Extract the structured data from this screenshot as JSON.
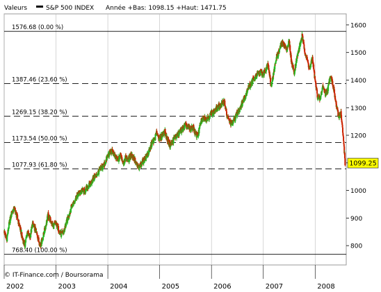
{
  "header": {
    "label": "Valeurs",
    "series_name": "S&P 500 INDEX",
    "stats": "Année +Bas: 1098.15 +Haut: 1471.75"
  },
  "footer": {
    "credit": "© IT-Finance.com / Boursorama"
  },
  "price_label": "1099.25",
  "colors": {
    "up": "#22bb22",
    "down": "#cc2200",
    "grid": "#bbbbbb",
    "price_box": "#ffff00"
  },
  "chart_data": {
    "type": "candlestick",
    "ylim": [
      730,
      1640
    ],
    "yticks": [
      800,
      900,
      1000,
      1100,
      1200,
      1300,
      1400,
      1500,
      1600
    ],
    "xlim": [
      2002.0,
      2008.6
    ],
    "xticks": [
      {
        "value": 2002.0,
        "label": "2002"
      },
      {
        "value": 2003.0,
        "label": "2003"
      },
      {
        "value": 2004.0,
        "label": "2004"
      },
      {
        "value": 2005.0,
        "label": "2005"
      },
      {
        "value": 2006.0,
        "label": "2006"
      },
      {
        "value": 2007.0,
        "label": "2007"
      },
      {
        "value": 2008.0,
        "label": "2008"
      }
    ],
    "fibonacci_levels": [
      {
        "value": 1576.68,
        "label": "1576.68 (0.00 %)"
      },
      {
        "value": 1387.46,
        "label": "1387.46 (23.60 %)"
      },
      {
        "value": 1269.15,
        "label": "1269.15 (38.20 %)"
      },
      {
        "value": 1173.54,
        "label": "1173.54 (50.00 %)"
      },
      {
        "value": 1077.93,
        "label": "1077.93 (61.80 %)"
      },
      {
        "value": 768.4,
        "label": "768.40 (100.00 %)"
      }
    ],
    "series": [
      {
        "points": [
          [
            2002.0,
            855
          ],
          [
            2002.05,
            820
          ],
          [
            2002.1,
            880
          ],
          [
            2002.15,
            920
          ],
          [
            2002.2,
            935
          ],
          [
            2002.25,
            905
          ],
          [
            2002.3,
            870
          ],
          [
            2002.35,
            830
          ],
          [
            2002.4,
            800
          ],
          [
            2002.45,
            850
          ],
          [
            2002.5,
            830
          ],
          [
            2002.55,
            880
          ],
          [
            2002.6,
            860
          ],
          [
            2002.65,
            830
          ],
          [
            2002.7,
            800
          ],
          [
            2002.75,
            830
          ],
          [
            2002.8,
            870
          ],
          [
            2002.85,
            910
          ],
          [
            2002.9,
            890
          ],
          [
            2002.95,
            870
          ],
          [
            2003.0,
            880
          ],
          [
            2003.05,
            860
          ],
          [
            2003.1,
            840
          ],
          [
            2003.15,
            850
          ],
          [
            2003.2,
            880
          ],
          [
            2003.25,
            910
          ],
          [
            2003.3,
            940
          ],
          [
            2003.35,
            960
          ],
          [
            2003.4,
            980
          ],
          [
            2003.45,
            990
          ],
          [
            2003.5,
            1000
          ],
          [
            2003.55,
            995
          ],
          [
            2003.6,
            1010
          ],
          [
            2003.65,
            1020
          ],
          [
            2003.7,
            1035
          ],
          [
            2003.75,
            1050
          ],
          [
            2003.8,
            1060
          ],
          [
            2003.85,
            1075
          ],
          [
            2003.9,
            1085
          ],
          [
            2003.95,
            1100
          ],
          [
            2004.0,
            1125
          ],
          [
            2004.05,
            1140
          ],
          [
            2004.1,
            1140
          ],
          [
            2004.15,
            1120
          ],
          [
            2004.2,
            1110
          ],
          [
            2004.25,
            1130
          ],
          [
            2004.3,
            1100
          ],
          [
            2004.35,
            1120
          ],
          [
            2004.4,
            1110
          ],
          [
            2004.45,
            1130
          ],
          [
            2004.5,
            1120
          ],
          [
            2004.55,
            1095
          ],
          [
            2004.6,
            1080
          ],
          [
            2004.65,
            1100
          ],
          [
            2004.7,
            1110
          ],
          [
            2004.75,
            1125
          ],
          [
            2004.8,
            1140
          ],
          [
            2004.85,
            1170
          ],
          [
            2004.9,
            1185
          ],
          [
            2004.95,
            1210
          ],
          [
            2005.0,
            1185
          ],
          [
            2005.05,
            1200
          ],
          [
            2005.1,
            1215
          ],
          [
            2005.15,
            1185
          ],
          [
            2005.2,
            1165
          ],
          [
            2005.25,
            1175
          ],
          [
            2005.3,
            1195
          ],
          [
            2005.35,
            1200
          ],
          [
            2005.4,
            1215
          ],
          [
            2005.45,
            1225
          ],
          [
            2005.5,
            1235
          ],
          [
            2005.55,
            1230
          ],
          [
            2005.6,
            1220
          ],
          [
            2005.65,
            1230
          ],
          [
            2005.7,
            1200
          ],
          [
            2005.75,
            1205
          ],
          [
            2005.8,
            1250
          ],
          [
            2005.85,
            1265
          ],
          [
            2005.9,
            1260
          ],
          [
            2005.95,
            1265
          ],
          [
            2006.0,
            1280
          ],
          [
            2006.05,
            1285
          ],
          [
            2006.1,
            1295
          ],
          [
            2006.15,
            1305
          ],
          [
            2006.2,
            1310
          ],
          [
            2006.25,
            1325
          ],
          [
            2006.3,
            1270
          ],
          [
            2006.35,
            1250
          ],
          [
            2006.4,
            1240
          ],
          [
            2006.45,
            1260
          ],
          [
            2006.5,
            1280
          ],
          [
            2006.55,
            1300
          ],
          [
            2006.6,
            1320
          ],
          [
            2006.65,
            1340
          ],
          [
            2006.7,
            1370
          ],
          [
            2006.75,
            1380
          ],
          [
            2006.8,
            1400
          ],
          [
            2006.85,
            1410
          ],
          [
            2006.9,
            1420
          ],
          [
            2006.95,
            1430
          ],
          [
            2007.0,
            1420
          ],
          [
            2007.05,
            1440
          ],
          [
            2007.1,
            1460
          ],
          [
            2007.15,
            1380
          ],
          [
            2007.2,
            1420
          ],
          [
            2007.25,
            1480
          ],
          [
            2007.3,
            1500
          ],
          [
            2007.35,
            1530
          ],
          [
            2007.4,
            1530
          ],
          [
            2007.45,
            1510
          ],
          [
            2007.5,
            1540
          ],
          [
            2007.55,
            1460
          ],
          [
            2007.6,
            1430
          ],
          [
            2007.65,
            1480
          ],
          [
            2007.7,
            1520
          ],
          [
            2007.75,
            1560
          ],
          [
            2007.8,
            1510
          ],
          [
            2007.85,
            1470
          ],
          [
            2007.9,
            1440
          ],
          [
            2007.95,
            1480
          ],
          [
            2008.0,
            1400
          ],
          [
            2008.05,
            1340
          ],
          [
            2008.1,
            1330
          ],
          [
            2008.15,
            1380
          ],
          [
            2008.2,
            1350
          ],
          [
            2008.25,
            1370
          ],
          [
            2008.3,
            1420
          ],
          [
            2008.35,
            1380
          ],
          [
            2008.4,
            1320
          ],
          [
            2008.45,
            1270
          ],
          [
            2008.5,
            1280
          ],
          [
            2008.53,
            1220
          ],
          [
            2008.56,
            1160
          ],
          [
            2008.58,
            1099.25
          ]
        ]
      }
    ]
  }
}
